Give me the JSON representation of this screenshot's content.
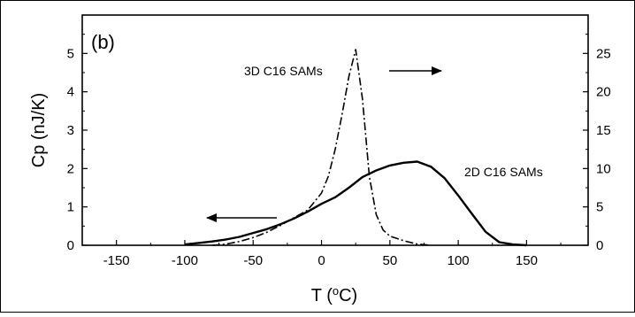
{
  "chart_data": {
    "type": "line",
    "panel_label": "(b)",
    "xlabel_prefix": "T (",
    "xlabel_sup": "o",
    "xlabel_suffix": "C)",
    "ylabel": "Cp (nJ/K)",
    "xlim": [
      -175,
      195
    ],
    "ylim_left": [
      0,
      6
    ],
    "ylim_right": [
      0,
      30
    ],
    "x_ticks": [
      -150,
      -100,
      -50,
      0,
      50,
      100,
      150
    ],
    "y_ticks_left": [
      0,
      1,
      2,
      3,
      4,
      5
    ],
    "y_ticks_right": [
      "0",
      "5",
      "10",
      "15",
      "20",
      "25"
    ],
    "y_ticks_right_values": [
      0,
      5,
      10,
      15,
      20,
      25
    ],
    "series": [
      {
        "name": "2D C16 SAMs",
        "axis": "left",
        "style": "solid",
        "x": [
          -100,
          -90,
          -80,
          -70,
          -60,
          -50,
          -40,
          -30,
          -20,
          -10,
          0,
          10,
          20,
          30,
          40,
          50,
          60,
          70,
          80,
          90,
          100,
          110,
          120,
          130,
          140,
          150
        ],
        "y": [
          0.02,
          0.06,
          0.1,
          0.15,
          0.22,
          0.32,
          0.42,
          0.55,
          0.7,
          0.88,
          1.08,
          1.25,
          1.5,
          1.78,
          1.95,
          2.08,
          2.15,
          2.18,
          2.05,
          1.75,
          1.3,
          0.82,
          0.35,
          0.08,
          0.02,
          0.0
        ]
      },
      {
        "name": "3D C16 SAMs",
        "axis": "right",
        "style": "dash-dot",
        "x": [
          -80,
          -70,
          -60,
          -50,
          -40,
          -30,
          -20,
          -10,
          0,
          5,
          10,
          15,
          20,
          25,
          30,
          35,
          40,
          45,
          50,
          60,
          70,
          80
        ],
        "y": [
          0.0,
          0.15,
          0.5,
          1.0,
          1.7,
          2.6,
          3.6,
          4.6,
          6.8,
          9.0,
          12.5,
          17.0,
          22.0,
          25.5,
          19.0,
          9.0,
          4.0,
          2.0,
          1.2,
          0.6,
          0.15,
          0.0
        ]
      }
    ],
    "annotations": [
      {
        "text": "3D C16 SAMs",
        "arrow": "right",
        "points_to": "right axis"
      },
      {
        "text": "2D C16 SAMs"
      },
      {
        "text": "",
        "arrow": "left",
        "points_to": "left axis"
      }
    ]
  }
}
